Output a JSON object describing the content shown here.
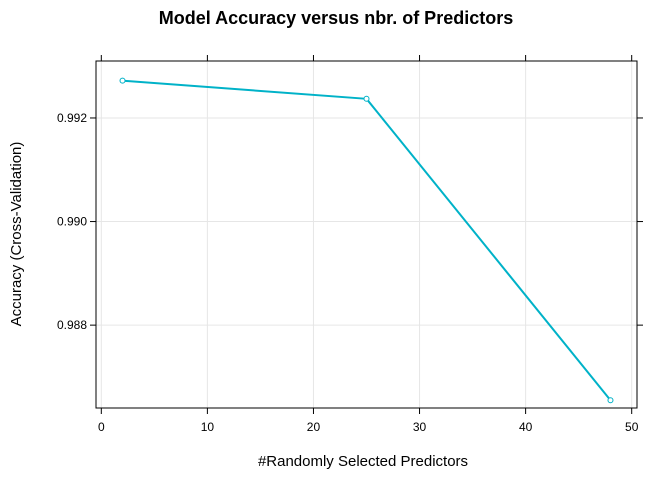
{
  "chart_data": {
    "type": "line",
    "title": "Model Accuracy versus nbr. of Predictors",
    "xlabel": "#Randomly Selected Predictors",
    "ylabel": "Accuracy (Cross-Validation)",
    "xlim": [
      -0.5,
      50.5
    ],
    "ylim": [
      0.9864,
      0.9931
    ],
    "xticks": [
      0,
      10,
      20,
      30,
      40,
      50
    ],
    "yticks": [
      0.988,
      0.99,
      0.992
    ],
    "ytick_labels": [
      "0.988",
      "0.990",
      "0.992"
    ],
    "grid": true,
    "legend": "none",
    "series": [
      {
        "x": [
          2,
          25,
          48
        ],
        "values": [
          0.99272,
          0.99237,
          0.98655
        ],
        "color": "#00b2c8"
      }
    ]
  }
}
